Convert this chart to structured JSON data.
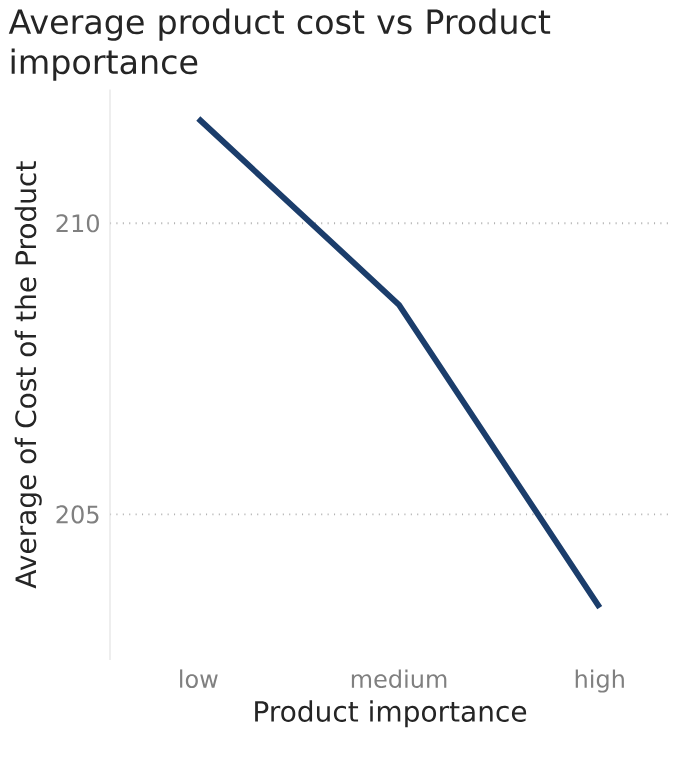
{
  "chart_data": {
    "type": "line",
    "title": "Average product cost vs Product importance",
    "xlabel": "Product importance",
    "ylabel": "Average of Cost of the Product",
    "categories": [
      "low",
      "medium",
      "high"
    ],
    "series": [
      {
        "color": "#1b3d6b",
        "values": [
          211.8,
          208.6,
          203.4
        ]
      }
    ],
    "ylim": [
      202.5,
      212.3
    ],
    "yticks": [
      205,
      210
    ],
    "grid": "y",
    "marker": "none",
    "line_style": "solid"
  }
}
